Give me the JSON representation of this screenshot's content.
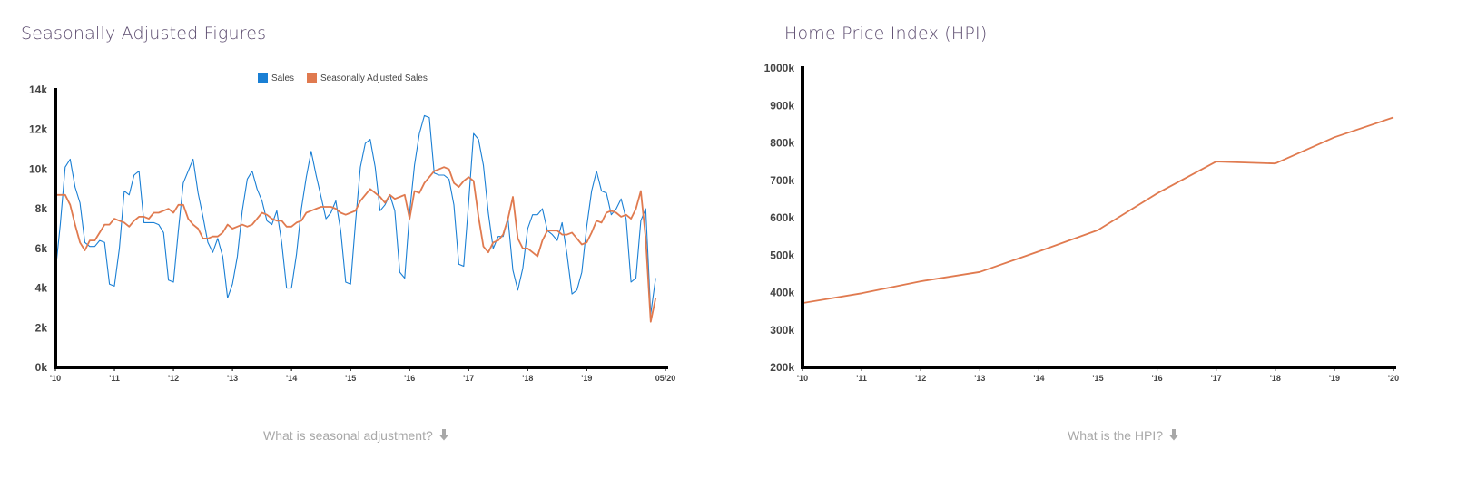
{
  "charts": {
    "seasonal": {
      "title": "Seasonally Adjusted Figures",
      "link_text": "What is seasonal adjustment?"
    },
    "hpi": {
      "title": "Home Price Index (HPI)",
      "link_text": "What is the HPI?"
    }
  },
  "colors": {
    "sales": "#1a7fd4",
    "adjusted": "#e07a4f",
    "axis": "#000000",
    "title": "#5b4b6e",
    "link": "#a8a8a8"
  },
  "icons": {
    "link_arrow": "arrow-down-icon"
  },
  "chart_data": [
    {
      "type": "line",
      "title": "Seasonally Adjusted Figures",
      "xlabel": "",
      "ylabel": "",
      "ylim": [
        0,
        14000
      ],
      "yticks": [
        0,
        2000,
        4000,
        6000,
        8000,
        10000,
        12000,
        14000
      ],
      "ytick_labels": [
        "0k",
        "2k",
        "4k",
        "6k",
        "8k",
        "10k",
        "12k",
        "14k"
      ],
      "xlim": [
        2010.0,
        2020.333
      ],
      "xticks": [
        2010,
        2011,
        2012,
        2013,
        2014,
        2015,
        2016,
        2017,
        2018,
        2019,
        2020.333
      ],
      "xtick_labels": [
        "'10",
        "'11",
        "'12",
        "'13",
        "'14",
        "'15",
        "'16",
        "'17",
        "'18",
        "'19",
        "05/20"
      ],
      "legend_position": "top-center",
      "grid": false,
      "x_start": "2010-01",
      "x_step": "month",
      "series": [
        {
          "name": "Sales",
          "color": "#1a7fd4",
          "values": [
            4800,
            7200,
            10100,
            10500,
            9100,
            8300,
            6300,
            6100,
            6100,
            6400,
            6300,
            4200,
            4100,
            6000,
            8900,
            8700,
            9700,
            9900,
            7300,
            7300,
            7300,
            7200,
            6800,
            4400,
            4300,
            6900,
            9300,
            9900,
            10500,
            8800,
            7600,
            6300,
            5800,
            6500,
            5600,
            3500,
            4200,
            5600,
            7900,
            9500,
            9900,
            9000,
            8400,
            7400,
            7200,
            7900,
            6300,
            4000,
            4000,
            5700,
            8000,
            9600,
            10900,
            9700,
            8600,
            7500,
            7800,
            8400,
            6900,
            4300,
            4200,
            7300,
            10100,
            11300,
            11500,
            10100,
            7900,
            8200,
            8700,
            7900,
            4800,
            4500,
            7800,
            10200,
            11800,
            12700,
            12600,
            9800,
            9700,
            9700,
            9500,
            8200,
            5200,
            5100,
            8300,
            11800,
            11500,
            10200,
            7800,
            6000,
            6600,
            6600,
            7500,
            4900,
            3900,
            5000,
            7000,
            7700,
            7700,
            8000,
            6900,
            6700,
            6400,
            7300,
            5700,
            3700,
            3900,
            4800,
            7100,
            8900,
            9900,
            8900,
            8800,
            7700,
            8000,
            8500,
            7500,
            4300,
            4500,
            7400,
            8000,
            2700,
            4500
          ]
        },
        {
          "name": "Seasonally Adjusted Sales",
          "color": "#e07a4f",
          "values": [
            8700,
            8700,
            8700,
            8200,
            7200,
            6300,
            5900,
            6400,
            6400,
            6800,
            7200,
            7200,
            7500,
            7400,
            7300,
            7100,
            7400,
            7600,
            7600,
            7500,
            7800,
            7800,
            7900,
            8000,
            7800,
            8200,
            8200,
            7500,
            7200,
            7000,
            6500,
            6500,
            6600,
            6600,
            6800,
            7200,
            7000,
            7100,
            7200,
            7100,
            7200,
            7500,
            7800,
            7700,
            7500,
            7400,
            7400,
            7100,
            7100,
            7300,
            7400,
            7800,
            7900,
            8000,
            8100,
            8100,
            8100,
            8000,
            7800,
            7700,
            7800,
            7900,
            8400,
            8700,
            9000,
            8800,
            8600,
            8300,
            8700,
            8500,
            8600,
            8700,
            7500,
            8900,
            8800,
            9300,
            9600,
            9900,
            10000,
            10100,
            10000,
            9300,
            9100,
            9400,
            9600,
            9400,
            7600,
            6100,
            5800,
            6300,
            6400,
            6700,
            7500,
            8600,
            6500,
            6000,
            6000,
            5800,
            5600,
            6400,
            6900,
            6900,
            6900,
            6700,
            6700,
            6800,
            6500,
            6200,
            6300,
            6800,
            7400,
            7300,
            7800,
            7900,
            7800,
            7600,
            7700,
            7500,
            8000,
            8900,
            6500,
            2300,
            3500
          ]
        }
      ]
    },
    {
      "type": "line",
      "title": "Home Price Index (HPI)",
      "xlabel": "",
      "ylabel": "",
      "ylim": [
        200000,
        1000000
      ],
      "yticks": [
        200000,
        300000,
        400000,
        500000,
        600000,
        700000,
        800000,
        900000,
        1000000
      ],
      "ytick_labels": [
        "200k",
        "300k",
        "400k",
        "500k",
        "600k",
        "700k",
        "800k",
        "900k",
        "1000k"
      ],
      "xlim": [
        2010,
        2020
      ],
      "xticks": [
        2010,
        2011,
        2012,
        2013,
        2014,
        2015,
        2016,
        2017,
        2018,
        2019,
        2020
      ],
      "xtick_labels": [
        "'10",
        "'11",
        "'12",
        "'13",
        "'14",
        "'15",
        "'16",
        "'17",
        "'18",
        "'19",
        "'20"
      ],
      "grid": false,
      "series": [
        {
          "name": "",
          "color": "#e07a4f",
          "x": [
            2010,
            2011,
            2012,
            2013,
            2014,
            2015,
            2016,
            2017,
            2018,
            2019,
            2020
          ],
          "values": [
            372000,
            398000,
            430000,
            455000,
            510000,
            567000,
            665000,
            750000,
            745000,
            815000,
            868000
          ]
        }
      ]
    }
  ]
}
